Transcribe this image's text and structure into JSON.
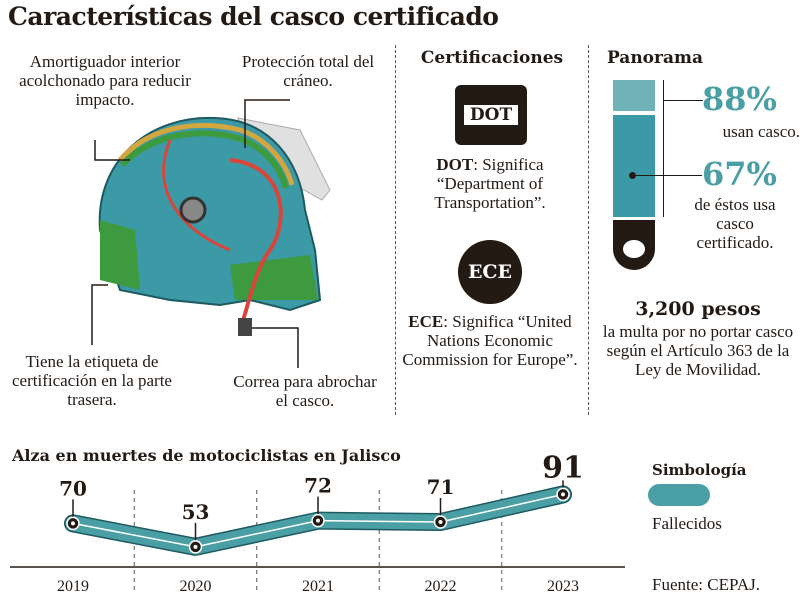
{
  "title": "Características del casco certificado",
  "helmet": {
    "label_padding": "Amortiguador interior acolchonado para reducir impacto.",
    "label_protection": "Protección total del cráneo.",
    "label_tag": "Tiene la etiqueta de certificación en la parte trasera.",
    "label_strap": "Correa para abrochar el casco."
  },
  "certifications": {
    "heading": "Certificaciones",
    "dot_logo": "DOT",
    "dot_term": "DOT",
    "dot_desc": ": Significa “Department of Transportation”.",
    "ece_logo": "ECE",
    "ece_term": "ECE",
    "ece_desc": ": Significa “United Nations Economic Commission for Europe”."
  },
  "panorama": {
    "heading": "Panorama",
    "pct_use": "88%",
    "use_text": "usan casco.",
    "pct_cert": "67%",
    "cert_text": "de éstos usa casco certificado.",
    "fine": "3,200 pesos",
    "fine_text": "la multa por no portar casco según el Artículo 363 de la Ley de Movilidad."
  },
  "chart_data": {
    "type": "line",
    "title": "Alza en muertes de motociclistas en Jalisco",
    "categories": [
      "2019",
      "2020",
      "2021",
      "2022",
      "2023"
    ],
    "series": [
      {
        "name": "Fallecidos",
        "values": [
          70,
          53,
          72,
          71,
          91
        ],
        "color": "#4a9fa4"
      }
    ],
    "legend_title": "Simbología",
    "legend": "right",
    "source": "Fuente: CEPAJ."
  },
  "colors": {
    "teal": "#4a9fa4",
    "green": "#3d9a3e",
    "dark": "#231a14"
  }
}
